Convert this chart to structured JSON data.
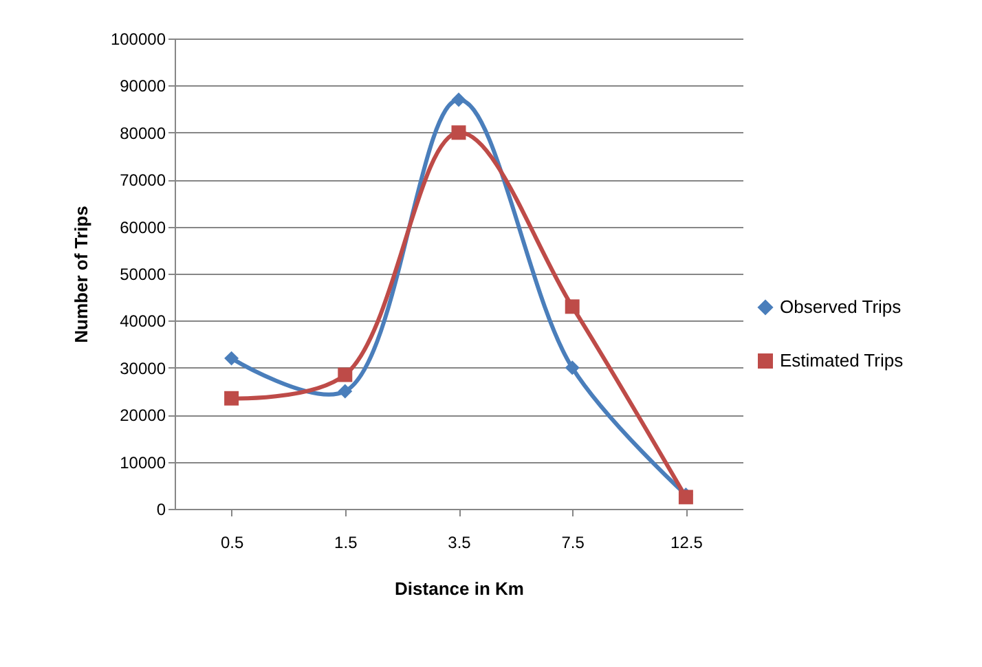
{
  "chart_data": {
    "type": "line",
    "xlabel": "Distance in Km",
    "ylabel": "Number of Trips",
    "categories": [
      "0.5",
      "1.5",
      "3.5",
      "7.5",
      "12.5"
    ],
    "series": [
      {
        "name": "Observed Trips",
        "color": "#4a7ebb",
        "marker": "diamond",
        "values": [
          32000,
          25000,
          87000,
          30000,
          3000
        ]
      },
      {
        "name": "Estimated Trips",
        "color": "#be4b48",
        "marker": "square",
        "values": [
          23500,
          28500,
          80000,
          43000,
          2500
        ]
      }
    ],
    "ylim": [
      0,
      100000
    ],
    "yticks": [
      0,
      10000,
      20000,
      30000,
      40000,
      50000,
      60000,
      70000,
      80000,
      90000,
      100000
    ],
    "grid": "y",
    "legend": "right"
  }
}
